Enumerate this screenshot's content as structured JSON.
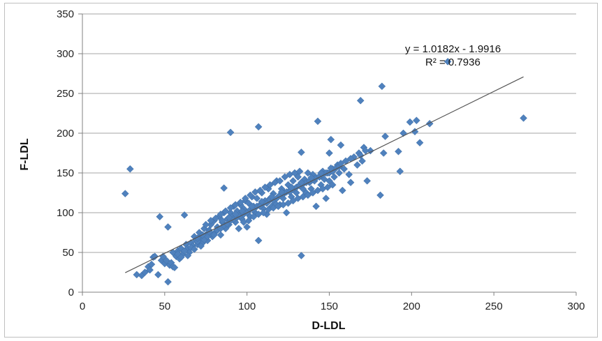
{
  "chart_data": {
    "type": "scatter",
    "title": "",
    "xlabel": "D-LDL",
    "ylabel": "F-LDL",
    "xlim": [
      0,
      300
    ],
    "ylim": [
      0,
      350
    ],
    "xticks": [
      0,
      50,
      100,
      150,
      200,
      250,
      300
    ],
    "yticks": [
      0,
      50,
      100,
      150,
      200,
      250,
      300,
      350
    ],
    "grid": "horizontal",
    "legend": "none",
    "marker_color": "#4f81bd",
    "trendline": {
      "slope": 1.0182,
      "intercept": -1.9916,
      "x_range": [
        26,
        268
      ],
      "color": "#555555"
    },
    "annotations": [
      {
        "text": "y = 1.0182x - 1.9916"
      },
      {
        "text": "R² = 0.7936"
      }
    ],
    "series": [
      {
        "points": [
          [
            26,
            124
          ],
          [
            29,
            155
          ],
          [
            33,
            22
          ],
          [
            36,
            21
          ],
          [
            38,
            25
          ],
          [
            40,
            32
          ],
          [
            41,
            28
          ],
          [
            42,
            35
          ],
          [
            43,
            44
          ],
          [
            44,
            45
          ],
          [
            46,
            22
          ],
          [
            47,
            95
          ],
          [
            48,
            40
          ],
          [
            49,
            45
          ],
          [
            50,
            36
          ],
          [
            51,
            40
          ],
          [
            52,
            13
          ],
          [
            52,
            82
          ],
          [
            53,
            34
          ],
          [
            54,
            37
          ],
          [
            55,
            32
          ],
          [
            55,
            50
          ],
          [
            56,
            31
          ],
          [
            57,
            45
          ],
          [
            58,
            52
          ],
          [
            59,
            42
          ],
          [
            60,
            55
          ],
          [
            61,
            48
          ],
          [
            62,
            97
          ],
          [
            63,
            60
          ],
          [
            64,
            55
          ],
          [
            65,
            50
          ],
          [
            66,
            62
          ],
          [
            67,
            58
          ],
          [
            68,
            70
          ],
          [
            69,
            65
          ],
          [
            70,
            60
          ],
          [
            71,
            75
          ],
          [
            72,
            68
          ],
          [
            73,
            62
          ],
          [
            74,
            80
          ],
          [
            75,
            72
          ],
          [
            76,
            65
          ],
          [
            77,
            78
          ],
          [
            78,
            85
          ],
          [
            79,
            70
          ],
          [
            80,
            90
          ],
          [
            81,
            76
          ],
          [
            82,
            82
          ],
          [
            83,
            95
          ],
          [
            84,
            72
          ],
          [
            85,
            88
          ],
          [
            86,
            100
          ],
          [
            86,
            131
          ],
          [
            87,
            80
          ],
          [
            88,
            92
          ],
          [
            89,
            85
          ],
          [
            90,
            100
          ],
          [
            90,
            201
          ],
          [
            91,
            95
          ],
          [
            92,
            108
          ],
          [
            93,
            88
          ],
          [
            94,
            102
          ],
          [
            95,
            97
          ],
          [
            96,
            110
          ],
          [
            97,
            92
          ],
          [
            98,
            105
          ],
          [
            99,
            115
          ],
          [
            100,
            100
          ],
          [
            100,
            82
          ],
          [
            101,
            112
          ],
          [
            102,
            95
          ],
          [
            103,
            120
          ],
          [
            104,
            108
          ],
          [
            105,
            100
          ],
          [
            106,
            118
          ],
          [
            107,
            65
          ],
          [
            107,
            208
          ],
          [
            108,
            110
          ],
          [
            109,
            125
          ],
          [
            110,
            105
          ],
          [
            111,
            115
          ],
          [
            112,
            98
          ],
          [
            113,
            130
          ],
          [
            114,
            118
          ],
          [
            115,
            108
          ],
          [
            116,
            124
          ],
          [
            117,
            112
          ],
          [
            118,
            140
          ],
          [
            119,
            120
          ],
          [
            120,
            110
          ],
          [
            121,
            130
          ],
          [
            122,
            118
          ],
          [
            123,
            125
          ],
          [
            124,
            100
          ],
          [
            125,
            135
          ],
          [
            126,
            128
          ],
          [
            127,
            120
          ],
          [
            128,
            140
          ],
          [
            129,
            130
          ],
          [
            130,
            125
          ],
          [
            131,
            145
          ],
          [
            132,
            135
          ],
          [
            133,
            46
          ],
          [
            133,
            176
          ],
          [
            134,
            130
          ],
          [
            135,
            142
          ],
          [
            136,
            125
          ],
          [
            137,
            150
          ],
          [
            138,
            138
          ],
          [
            139,
            130
          ],
          [
            140,
            148
          ],
          [
            141,
            140
          ],
          [
            142,
            108
          ],
          [
            143,
            215
          ],
          [
            144,
            145
          ],
          [
            145,
            135
          ],
          [
            146,
            152
          ],
          [
            147,
            142
          ],
          [
            148,
            118
          ],
          [
            149,
            150
          ],
          [
            150,
            140
          ],
          [
            150,
            175
          ],
          [
            151,
            192
          ],
          [
            152,
            155
          ],
          [
            153,
            145
          ],
          [
            155,
            160
          ],
          [
            156,
            150
          ],
          [
            157,
            185
          ],
          [
            158,
            128
          ],
          [
            159,
            155
          ],
          [
            160,
            165
          ],
          [
            162,
            148
          ],
          [
            163,
            138
          ],
          [
            165,
            170
          ],
          [
            167,
            160
          ],
          [
            168,
            175
          ],
          [
            169,
            241
          ],
          [
            170,
            165
          ],
          [
            171,
            182
          ],
          [
            173,
            140
          ],
          [
            175,
            178
          ],
          [
            181,
            122
          ],
          [
            182,
            259
          ],
          [
            183,
            175
          ],
          [
            184,
            196
          ],
          [
            192,
            177
          ],
          [
            193,
            152
          ],
          [
            195,
            200
          ],
          [
            199,
            214
          ],
          [
            202,
            202
          ],
          [
            203,
            216
          ],
          [
            205,
            188
          ],
          [
            211,
            212
          ],
          [
            222,
            290
          ],
          [
            268,
            219
          ],
          [
            58,
            48
          ],
          [
            60,
            44
          ],
          [
            62,
            52
          ],
          [
            64,
            46
          ],
          [
            66,
            56
          ],
          [
            68,
            54
          ],
          [
            70,
            64
          ],
          [
            72,
            58
          ],
          [
            74,
            66
          ],
          [
            76,
            70
          ],
          [
            78,
            74
          ],
          [
            80,
            72
          ],
          [
            82,
            78
          ],
          [
            84,
            80
          ],
          [
            86,
            84
          ],
          [
            88,
            86
          ],
          [
            90,
            90
          ],
          [
            92,
            92
          ],
          [
            94,
            94
          ],
          [
            96,
            96
          ],
          [
            98,
            98
          ],
          [
            100,
            100
          ],
          [
            102,
            104
          ],
          [
            104,
            104
          ],
          [
            106,
            108
          ],
          [
            108,
            108
          ],
          [
            110,
            112
          ],
          [
            112,
            112
          ],
          [
            114,
            116
          ],
          [
            116,
            116
          ],
          [
            118,
            118
          ],
          [
            120,
            122
          ],
          [
            122,
            124
          ],
          [
            124,
            126
          ],
          [
            126,
            126
          ],
          [
            128,
            130
          ],
          [
            130,
            132
          ],
          [
            132,
            134
          ],
          [
            134,
            136
          ],
          [
            136,
            138
          ],
          [
            138,
            140
          ],
          [
            140,
            142
          ],
          [
            142,
            144
          ],
          [
            144,
            146
          ],
          [
            146,
            148
          ],
          [
            148,
            150
          ],
          [
            150,
            150
          ],
          [
            152,
            152
          ],
          [
            154,
            156
          ],
          [
            156,
            158
          ],
          [
            95,
            80
          ],
          [
            98,
            88
          ],
          [
            101,
            90
          ],
          [
            104,
            95
          ],
          [
            107,
            98
          ],
          [
            110,
            100
          ],
          [
            113,
            104
          ],
          [
            116,
            106
          ],
          [
            119,
            108
          ],
          [
            122,
            110
          ],
          [
            125,
            112
          ],
          [
            128,
            115
          ],
          [
            131,
            118
          ],
          [
            134,
            120
          ],
          [
            137,
            122
          ],
          [
            140,
            125
          ],
          [
            143,
            128
          ],
          [
            146,
            130
          ],
          [
            149,
            132
          ],
          [
            152,
            135
          ],
          [
            75,
            85
          ],
          [
            78,
            90
          ],
          [
            81,
            93
          ],
          [
            84,
            98
          ],
          [
            87,
            102
          ],
          [
            90,
            106
          ],
          [
            93,
            110
          ],
          [
            96,
            113
          ],
          [
            99,
            118
          ],
          [
            102,
            122
          ],
          [
            105,
            126
          ],
          [
            108,
            128
          ],
          [
            111,
            132
          ],
          [
            114,
            135
          ],
          [
            117,
            138
          ],
          [
            120,
            140
          ],
          [
            123,
            145
          ],
          [
            126,
            148
          ],
          [
            129,
            150
          ],
          [
            132,
            152
          ],
          [
            70,
            68
          ],
          [
            73,
            72
          ],
          [
            77,
            76
          ],
          [
            85,
            90
          ],
          [
            89,
            94
          ],
          [
            93,
            98
          ],
          [
            97,
            102
          ],
          [
            103,
            108
          ],
          [
            109,
            114
          ],
          [
            115,
            120
          ],
          [
            121,
            126
          ],
          [
            127,
            132
          ],
          [
            133,
            138
          ],
          [
            139,
            144
          ],
          [
            145,
            150
          ],
          [
            151,
            156
          ],
          [
            157,
            162
          ],
          [
            163,
            168
          ],
          [
            169,
            172
          ],
          [
            172,
            178
          ]
        ]
      }
    ]
  }
}
